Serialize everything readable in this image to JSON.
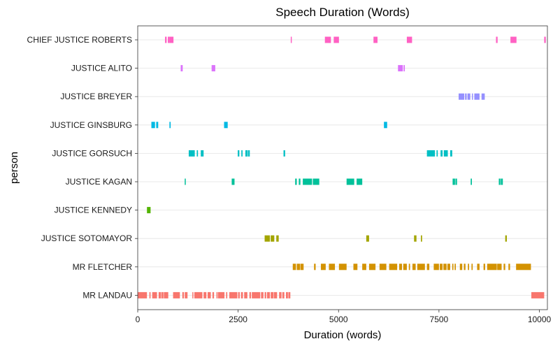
{
  "chart_data": {
    "type": "timeline",
    "title": "Speech Duration (Words)",
    "xlabel": "Duration (words)",
    "ylabel": "person",
    "xlim": [
      0,
      10200
    ],
    "x_ticks": [
      0,
      2500,
      5000,
      7500,
      10000
    ],
    "x_tick_labels": [
      "0",
      "2500",
      "5000",
      "7500",
      "10000"
    ],
    "grid": true,
    "legend": "none",
    "series": [
      {
        "name": "CHIEF JUSTICE ROBERTS",
        "color": "#FF61C3",
        "segments": [
          [
            680,
            720
          ],
          [
            750,
            790
          ],
          [
            790,
            890
          ],
          [
            3810,
            3830
          ],
          [
            4660,
            4810
          ],
          [
            4880,
            5010
          ],
          [
            5870,
            5970
          ],
          [
            6700,
            6830
          ],
          [
            8920,
            8960
          ],
          [
            9280,
            9430
          ],
          [
            10120,
            10160
          ]
        ]
      },
      {
        "name": "JUSTICE ALITO",
        "color": "#DB72FB",
        "segments": [
          [
            1070,
            1120
          ],
          [
            1840,
            1870
          ],
          [
            1870,
            1930
          ],
          [
            6480,
            6600
          ],
          [
            6620,
            6650
          ]
        ]
      },
      {
        "name": "JUSTICE BREYER",
        "color": "#9590FF",
        "segments": [
          [
            7990,
            8130
          ],
          [
            8150,
            8190
          ],
          [
            8210,
            8280
          ],
          [
            8320,
            8340
          ],
          [
            8380,
            8510
          ],
          [
            8560,
            8640
          ]
        ]
      },
      {
        "name": "JUSTICE GINSBURG",
        "color": "#00B9E3",
        "segments": [
          [
            340,
            430
          ],
          [
            460,
            510
          ],
          [
            790,
            820
          ],
          [
            2150,
            2240
          ],
          [
            6130,
            6210
          ]
        ]
      },
      {
        "name": "JUSTICE GORSUCH",
        "color": "#00BFC4",
        "segments": [
          [
            1270,
            1420
          ],
          [
            1470,
            1500
          ],
          [
            1570,
            1640
          ],
          [
            2490,
            2530
          ],
          [
            2580,
            2610
          ],
          [
            2680,
            2740
          ],
          [
            2750,
            2790
          ],
          [
            3630,
            3670
          ],
          [
            7200,
            7400
          ],
          [
            7440,
            7470
          ],
          [
            7540,
            7590
          ],
          [
            7620,
            7720
          ],
          [
            7780,
            7830
          ]
        ]
      },
      {
        "name": "JUSTICE KAGAN",
        "color": "#00C19A",
        "segments": [
          [
            1170,
            1190
          ],
          [
            2340,
            2410
          ],
          [
            3920,
            3960
          ],
          [
            4010,
            4050
          ],
          [
            4110,
            4340
          ],
          [
            4360,
            4520
          ],
          [
            5200,
            5390
          ],
          [
            5450,
            5590
          ],
          [
            7840,
            7900
          ],
          [
            7910,
            7950
          ],
          [
            8290,
            8320
          ],
          [
            8990,
            9030
          ],
          [
            9040,
            9090
          ]
        ]
      },
      {
        "name": "JUSTICE KENNEDY",
        "color": "#53B400",
        "segments": [
          [
            230,
            320
          ]
        ]
      },
      {
        "name": "JUSTICE SOTOMAYOR",
        "color": "#A3A500",
        "segments": [
          [
            3160,
            3290
          ],
          [
            3310,
            3400
          ],
          [
            3450,
            3510
          ],
          [
            5690,
            5760
          ],
          [
            6880,
            6940
          ],
          [
            7050,
            7080
          ],
          [
            9150,
            9190
          ]
        ]
      },
      {
        "name": "MR FLETCHER",
        "color": "#D39200",
        "segments": [
          [
            3860,
            3940
          ],
          [
            3960,
            4040
          ],
          [
            4050,
            4130
          ],
          [
            4390,
            4430
          ],
          [
            4560,
            4680
          ],
          [
            4760,
            4910
          ],
          [
            5010,
            5200
          ],
          [
            5370,
            5470
          ],
          [
            5590,
            5690
          ],
          [
            5760,
            5920
          ],
          [
            6020,
            6190
          ],
          [
            6260,
            6460
          ],
          [
            6510,
            6580
          ],
          [
            6610,
            6700
          ],
          [
            6750,
            6780
          ],
          [
            6840,
            6920
          ],
          [
            6960,
            7150
          ],
          [
            7200,
            7260
          ],
          [
            7370,
            7500
          ],
          [
            7520,
            7590
          ],
          [
            7610,
            7690
          ],
          [
            7710,
            7780
          ],
          [
            7830,
            7860
          ],
          [
            7890,
            7920
          ],
          [
            8020,
            8080
          ],
          [
            8120,
            8160
          ],
          [
            8220,
            8250
          ],
          [
            8310,
            8340
          ],
          [
            8450,
            8510
          ],
          [
            8610,
            8650
          ],
          [
            8700,
            8940
          ],
          [
            8950,
            9060
          ],
          [
            9110,
            9150
          ],
          [
            9230,
            9270
          ],
          [
            9420,
            9790
          ]
        ]
      },
      {
        "name": "MR LANDAU",
        "color": "#F8766D",
        "segments": [
          [
            0,
            230
          ],
          [
            290,
            320
          ],
          [
            360,
            480
          ],
          [
            520,
            580
          ],
          [
            590,
            640
          ],
          [
            650,
            760
          ],
          [
            880,
            1050
          ],
          [
            1110,
            1150
          ],
          [
            1170,
            1240
          ],
          [
            1360,
            1380
          ],
          [
            1410,
            1610
          ],
          [
            1640,
            1710
          ],
          [
            1740,
            1820
          ],
          [
            1860,
            1900
          ],
          [
            1960,
            1990
          ],
          [
            2000,
            2160
          ],
          [
            2200,
            2230
          ],
          [
            2280,
            2480
          ],
          [
            2500,
            2540
          ],
          [
            2570,
            2620
          ],
          [
            2650,
            2730
          ],
          [
            2780,
            2820
          ],
          [
            2840,
            3050
          ],
          [
            3070,
            3130
          ],
          [
            3160,
            3200
          ],
          [
            3220,
            3290
          ],
          [
            3310,
            3380
          ],
          [
            3390,
            3470
          ],
          [
            3520,
            3580
          ],
          [
            3600,
            3650
          ],
          [
            3690,
            3740
          ],
          [
            3750,
            3800
          ],
          [
            9800,
            10120
          ]
        ]
      }
    ]
  }
}
